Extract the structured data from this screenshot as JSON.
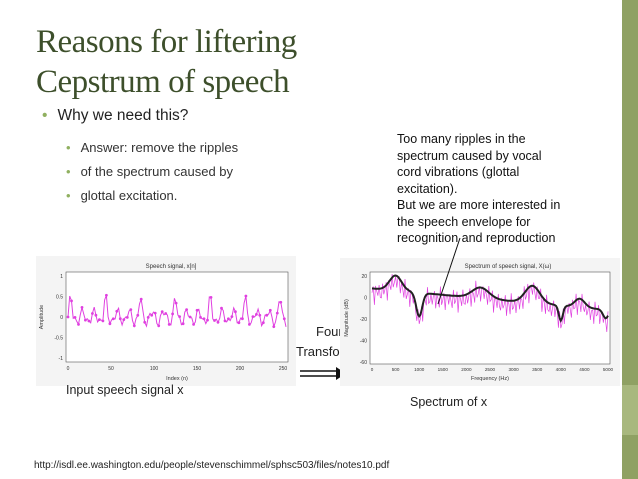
{
  "slide": {
    "title_line1": "Reasons for liftering",
    "title_line2": "Cepstrum of speech",
    "bullet": "Why we need this?",
    "sub_bullets": [
      "Answer: remove the ripples",
      "of the spectrum caused by",
      "glottal excitation."
    ],
    "note_lines": [
      "Too many ripples in the",
      "spectrum caused by vocal",
      "cord vibrations (glottal",
      "excitation).",
      "But we are more interested in",
      "the speech envelope for",
      "recognition and reproduction"
    ],
    "arrow_label_1": "Fourier",
    "arrow_label_2": "Transform",
    "caption_left": "Input speech signal x",
    "caption_right": "Spectrum of x",
    "url": "http://isdl.ee.washington.edu/people/stevenschimmel/sphsc503/files/notes10.pdf"
  },
  "left_plot": {
    "title": "Speech signal, x[n]",
    "ylabel": "Amplitude",
    "xlabel": "Index (n)",
    "yticks": [
      "1",
      "0.5",
      "0",
      "-0.5",
      "-1"
    ],
    "xticks": [
      "0",
      "50",
      "100",
      "150",
      "200",
      "250"
    ]
  },
  "right_plot": {
    "title": "Spectrum of speech signal, X(ω)",
    "ylabel": "Magnitude (dB)",
    "xlabel": "Frequency (Hz)",
    "yticks": [
      "20",
      "0",
      "-20",
      "-40",
      "-60"
    ],
    "xticks": [
      "0",
      "500",
      "1000",
      "1500",
      "2000",
      "2500",
      "3000",
      "3500",
      "4000",
      "4500",
      "5000"
    ]
  },
  "colors": {
    "accent": "#90b060",
    "band": "#8fa163",
    "signal": "#e040e0",
    "envelope": "#222222",
    "title": "#3d4f2b"
  }
}
